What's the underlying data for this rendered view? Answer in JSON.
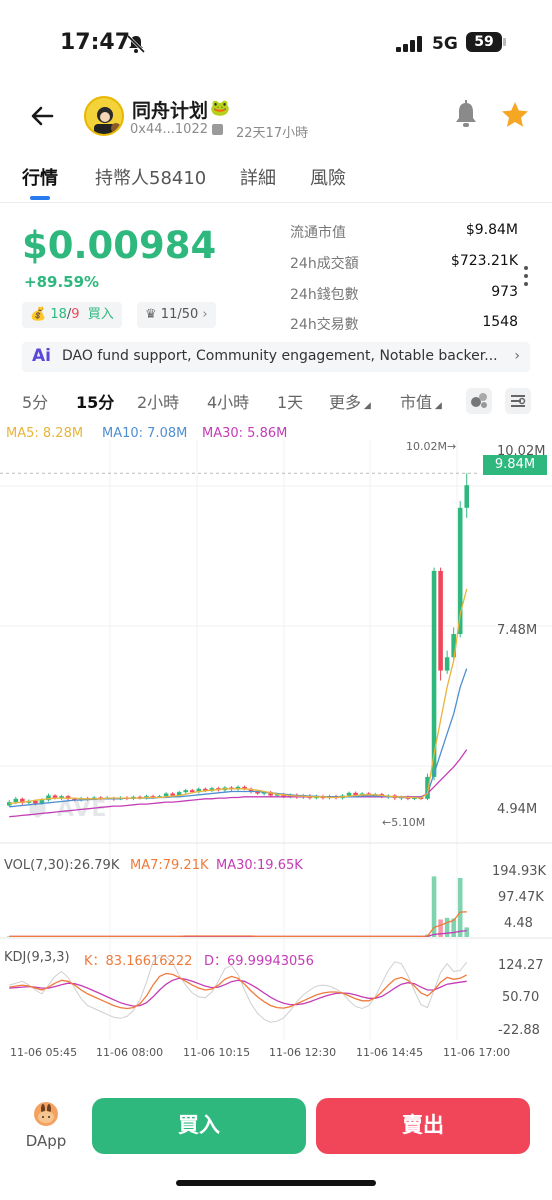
{
  "status": {
    "time": "17:47",
    "network": "5G",
    "battery": "59"
  },
  "header": {
    "token_name": "同舟计划",
    "address": "0x44...1022",
    "age": "22天17小時"
  },
  "tabs": [
    {
      "label": "行情"
    },
    {
      "label": "持幣人58410"
    },
    {
      "label": "詳細"
    },
    {
      "label": "風險"
    }
  ],
  "price": {
    "value": "$0.00984",
    "change": "+89.59%",
    "buy_sell_green": "18",
    "buy_sell_sep": "/",
    "buy_sell_red": "9",
    "buy_sell_label": "買入",
    "holders_rank": "11/50"
  },
  "stats": [
    {
      "label": "流通市值",
      "value": "$9.84M"
    },
    {
      "label": "24h成交額",
      "value": "$723.21K"
    },
    {
      "label": "24h錢包數",
      "value": "973"
    },
    {
      "label": "24h交易數",
      "value": "1548"
    }
  ],
  "ai_summary": {
    "logo": "Ai",
    "text": "DAO fund support, Community engagement, Notable backer..."
  },
  "intervals": [
    {
      "label": "5分"
    },
    {
      "label": "15分"
    },
    {
      "label": "2小時"
    },
    {
      "label": "4小時"
    },
    {
      "label": "1天"
    },
    {
      "label": "更多"
    },
    {
      "label": "市值"
    }
  ],
  "colors": {
    "up": "#2fb87e",
    "down": "#f1465a",
    "ma5": "#e8b43a",
    "ma10": "#4f8fd1",
    "ma30": "#c43cb6"
  },
  "chart_data": {
    "type": "candlestick",
    "ma_legend": {
      "ma5": "MA5: 8.28M",
      "ma10": "MA10: 7.08M",
      "ma30": "MA30: 5.86M"
    },
    "y_ticks": [
      "10.02M",
      "7.48M",
      "4.94M"
    ],
    "current_price_tag": "9.84M",
    "high_label": "10.02M→",
    "low_label": "←5.10M",
    "ylim": [
      4.5,
      10.4
    ],
    "candles": [
      [
        5.02,
        5.07,
        5.0,
        5.1
      ],
      [
        5.07,
        5.12,
        5.04,
        5.15
      ],
      [
        5.12,
        5.06,
        5.03,
        5.14
      ],
      [
        5.06,
        5.09,
        5.04,
        5.11
      ],
      [
        5.09,
        5.05,
        5.02,
        5.11
      ],
      [
        5.05,
        5.1,
        5.03,
        5.13
      ],
      [
        5.1,
        5.17,
        5.08,
        5.2
      ],
      [
        5.17,
        5.13,
        5.11,
        5.19
      ],
      [
        5.13,
        5.16,
        5.1,
        5.18
      ],
      [
        5.16,
        5.12,
        5.09,
        5.18
      ],
      [
        5.12,
        5.1,
        5.08,
        5.14
      ],
      [
        5.1,
        5.13,
        5.08,
        5.15
      ],
      [
        5.13,
        5.11,
        5.09,
        5.15
      ],
      [
        5.11,
        5.14,
        5.1,
        5.16
      ],
      [
        5.14,
        5.12,
        5.1,
        5.16
      ],
      [
        5.12,
        5.14,
        5.11,
        5.16
      ],
      [
        5.14,
        5.11,
        5.09,
        5.15
      ],
      [
        5.11,
        5.14,
        5.1,
        5.16
      ],
      [
        5.14,
        5.12,
        5.1,
        5.16
      ],
      [
        5.12,
        5.15,
        5.1,
        5.17
      ],
      [
        5.15,
        5.13,
        5.11,
        5.17
      ],
      [
        5.13,
        5.16,
        5.11,
        5.18
      ],
      [
        5.16,
        5.14,
        5.12,
        5.18
      ],
      [
        5.14,
        5.16,
        5.13,
        5.18
      ],
      [
        5.16,
        5.2,
        5.14,
        5.22
      ],
      [
        5.2,
        5.17,
        5.15,
        5.22
      ],
      [
        5.17,
        5.22,
        5.15,
        5.24
      ],
      [
        5.22,
        5.25,
        5.2,
        5.27
      ],
      [
        5.25,
        5.22,
        5.2,
        5.27
      ],
      [
        5.22,
        5.27,
        5.2,
        5.29
      ],
      [
        5.27,
        5.24,
        5.22,
        5.29
      ],
      [
        5.24,
        5.28,
        5.22,
        5.3
      ],
      [
        5.28,
        5.25,
        5.23,
        5.3
      ],
      [
        5.25,
        5.29,
        5.23,
        5.31
      ],
      [
        5.29,
        5.26,
        5.24,
        5.31
      ],
      [
        5.26,
        5.3,
        5.24,
        5.32
      ],
      [
        5.3,
        5.27,
        5.25,
        5.32
      ],
      [
        5.27,
        5.23,
        5.2,
        5.29
      ],
      [
        5.23,
        5.2,
        5.18,
        5.25
      ],
      [
        5.2,
        5.22,
        5.17,
        5.24
      ],
      [
        5.22,
        5.17,
        5.15,
        5.24
      ],
      [
        5.17,
        5.19,
        5.15,
        5.21
      ],
      [
        5.19,
        5.15,
        5.13,
        5.21
      ],
      [
        5.15,
        5.18,
        5.13,
        5.2
      ],
      [
        5.18,
        5.14,
        5.12,
        5.2
      ],
      [
        5.14,
        5.17,
        5.12,
        5.19
      ],
      [
        5.17,
        5.13,
        5.11,
        5.19
      ],
      [
        5.13,
        5.16,
        5.11,
        5.18
      ],
      [
        5.16,
        5.13,
        5.11,
        5.18
      ],
      [
        5.13,
        5.16,
        5.11,
        5.18
      ],
      [
        5.16,
        5.13,
        5.11,
        5.18
      ],
      [
        5.13,
        5.17,
        5.11,
        5.19
      ],
      [
        5.17,
        5.21,
        5.15,
        5.23
      ],
      [
        5.21,
        5.17,
        5.15,
        5.23
      ],
      [
        5.17,
        5.2,
        5.15,
        5.22
      ],
      [
        5.2,
        5.16,
        5.14,
        5.22
      ],
      [
        5.16,
        5.19,
        5.14,
        5.21
      ],
      [
        5.19,
        5.15,
        5.13,
        5.21
      ],
      [
        5.15,
        5.17,
        5.12,
        5.19
      ],
      [
        5.17,
        5.13,
        5.1,
        5.19
      ],
      [
        5.13,
        5.15,
        5.1,
        5.17
      ],
      [
        5.15,
        5.12,
        5.1,
        5.17
      ],
      [
        5.12,
        5.14,
        5.1,
        5.16
      ],
      [
        5.14,
        5.12,
        5.1,
        5.16
      ],
      [
        5.12,
        5.45,
        5.1,
        5.5
      ],
      [
        5.45,
        8.55,
        5.4,
        8.6
      ],
      [
        8.55,
        7.05,
        6.9,
        8.6
      ],
      [
        7.05,
        7.25,
        7.0,
        7.35
      ],
      [
        7.25,
        7.6,
        7.2,
        7.7
      ],
      [
        7.6,
        9.5,
        7.55,
        9.6
      ],
      [
        9.5,
        9.84,
        9.35,
        10.02
      ]
    ],
    "ma5": [
      5.05,
      5.06,
      5.07,
      5.08,
      5.1,
      5.11,
      5.12,
      5.13,
      5.13,
      5.13,
      5.13,
      5.12,
      5.12,
      5.12,
      5.12,
      5.13,
      5.13,
      5.13,
      5.13,
      5.13,
      5.13,
      5.14,
      5.14,
      5.14,
      5.15,
      5.16,
      5.17,
      5.19,
      5.21,
      5.23,
      5.24,
      5.25,
      5.26,
      5.27,
      5.27,
      5.27,
      5.27,
      5.26,
      5.25,
      5.23,
      5.21,
      5.19,
      5.18,
      5.17,
      5.16,
      5.16,
      5.15,
      5.15,
      5.15,
      5.14,
      5.14,
      5.15,
      5.16,
      5.17,
      5.18,
      5.18,
      5.18,
      5.17,
      5.16,
      5.15,
      5.15,
      5.14,
      5.14,
      5.13,
      5.2,
      5.8,
      6.3,
      6.8,
      7.2,
      7.9,
      8.28
    ],
    "ma10": [
      5.0,
      5.01,
      5.02,
      5.03,
      5.04,
      5.05,
      5.06,
      5.07,
      5.08,
      5.09,
      5.1,
      5.1,
      5.11,
      5.11,
      5.12,
      5.12,
      5.12,
      5.12,
      5.13,
      5.13,
      5.13,
      5.13,
      5.13,
      5.14,
      5.14,
      5.15,
      5.15,
      5.16,
      5.17,
      5.18,
      5.19,
      5.2,
      5.21,
      5.22,
      5.23,
      5.23,
      5.23,
      5.23,
      5.23,
      5.22,
      5.21,
      5.2,
      5.19,
      5.18,
      5.17,
      5.17,
      5.16,
      5.16,
      5.15,
      5.15,
      5.15,
      5.15,
      5.15,
      5.15,
      5.16,
      5.16,
      5.16,
      5.16,
      5.15,
      5.15,
      5.14,
      5.14,
      5.14,
      5.14,
      5.2,
      5.5,
      5.8,
      6.1,
      6.4,
      6.8,
      7.08
    ],
    "ma30": [
      4.85,
      4.86,
      4.87,
      4.88,
      4.89,
      4.9,
      4.91,
      4.92,
      4.93,
      4.94,
      4.95,
      4.96,
      4.97,
      4.98,
      4.99,
      5.0,
      5.01,
      5.01,
      5.02,
      5.03,
      5.04,
      5.04,
      5.05,
      5.06,
      5.07,
      5.07,
      5.08,
      5.09,
      5.1,
      5.11,
      5.12,
      5.12,
      5.13,
      5.13,
      5.14,
      5.14,
      5.15,
      5.15,
      5.15,
      5.15,
      5.15,
      5.15,
      5.15,
      5.15,
      5.15,
      5.15,
      5.15,
      5.15,
      5.15,
      5.15,
      5.15,
      5.15,
      5.15,
      5.15,
      5.15,
      5.15,
      5.15,
      5.15,
      5.15,
      5.15,
      5.15,
      5.15,
      5.15,
      5.15,
      5.2,
      5.3,
      5.4,
      5.5,
      5.6,
      5.72,
      5.86
    ],
    "volume": {
      "legend": {
        "vol": "VOL(7,30):26.79K",
        "ma7": "MA7:79.21K",
        "ma30": "MA30:19.65K"
      },
      "y_ticks": [
        "194.93K",
        "97.47K",
        "4.48"
      ],
      "ylim": [
        0,
        210
      ],
      "bars": [
        2,
        2,
        1,
        2,
        2,
        2,
        3,
        2,
        2,
        2,
        1,
        2,
        2,
        2,
        2,
        2,
        2,
        2,
        2,
        2,
        2,
        2,
        2,
        2,
        3,
        2,
        3,
        3,
        2,
        3,
        2,
        3,
        2,
        3,
        2,
        3,
        2,
        2,
        2,
        2,
        2,
        2,
        2,
        2,
        2,
        2,
        2,
        2,
        2,
        2,
        2,
        2,
        3,
        2,
        2,
        2,
        2,
        2,
        2,
        2,
        2,
        2,
        2,
        2,
        8,
        190,
        55,
        60,
        58,
        185,
        30
      ],
      "ma7": [
        2,
        2,
        2,
        2,
        2,
        2,
        2,
        2,
        2,
        2,
        2,
        2,
        2,
        2,
        2,
        2,
        2,
        2,
        2,
        2,
        2,
        2,
        2,
        2,
        2,
        2,
        2,
        3,
        3,
        3,
        3,
        3,
        3,
        3,
        3,
        3,
        3,
        3,
        2,
        2,
        2,
        2,
        2,
        2,
        2,
        2,
        2,
        2,
        2,
        2,
        2,
        2,
        2,
        2,
        2,
        2,
        2,
        2,
        2,
        2,
        2,
        2,
        2,
        2,
        3,
        30,
        37,
        45,
        52,
        78,
        79
      ],
      "ma30": [
        2,
        2,
        2,
        2,
        2,
        2,
        2,
        2,
        2,
        2,
        2,
        2,
        2,
        2,
        2,
        2,
        2,
        2,
        2,
        2,
        2,
        2,
        2,
        2,
        2,
        2,
        2,
        2,
        2,
        2,
        2,
        2,
        2,
        2,
        2,
        2,
        2,
        2,
        2,
        2,
        2,
        2,
        2,
        2,
        2,
        2,
        2,
        2,
        2,
        2,
        2,
        2,
        2,
        2,
        2,
        2,
        2,
        2,
        2,
        2,
        2,
        2,
        2,
        2,
        2,
        8,
        10,
        12,
        14,
        18,
        20
      ]
    },
    "kdj": {
      "legend": {
        "name": "KDJ(9,3,3)",
        "k": "K：83.16616222",
        "d": "D：69.99943056"
      },
      "y_ticks": [
        "124.27",
        "50.70",
        "-22.88"
      ],
      "ylim": [
        -30,
        130
      ],
      "k": [
        58,
        60,
        62,
        60,
        56,
        52,
        58,
        66,
        72,
        70,
        62,
        52,
        44,
        38,
        32,
        26,
        20,
        16,
        14,
        16,
        24,
        40,
        62,
        80,
        86,
        84,
        78,
        70,
        62,
        56,
        52,
        54,
        62,
        74,
        80,
        76,
        64,
        50,
        38,
        28,
        20,
        16,
        15,
        18,
        24,
        30,
        36,
        42,
        46,
        48,
        48,
        46,
        40,
        34,
        30,
        30,
        36,
        48,
        62,
        74,
        78,
        72,
        60,
        46,
        40,
        52,
        68,
        78,
        74,
        76,
        83
      ],
      "d": [
        56,
        57,
        58,
        59,
        58,
        56,
        56,
        59,
        63,
        66,
        65,
        61,
        56,
        50,
        44,
        38,
        32,
        26,
        22,
        19,
        20,
        26,
        38,
        52,
        64,
        72,
        76,
        74,
        70,
        65,
        60,
        57,
        58,
        63,
        69,
        72,
        70,
        63,
        55,
        46,
        37,
        30,
        25,
        22,
        22,
        24,
        28,
        33,
        38,
        42,
        45,
        46,
        45,
        42,
        38,
        35,
        35,
        39,
        47,
        56,
        64,
        67,
        65,
        58,
        52,
        52,
        58,
        64,
        66,
        68,
        70
      ],
      "j": [
        62,
        66,
        70,
        62,
        52,
        44,
        62,
        80,
        90,
        78,
        56,
        34,
        20,
        14,
        8,
        2,
        -4,
        -6,
        -2,
        10,
        32,
        68,
        110,
        124,
        120,
        108,
        82,
        62,
        46,
        38,
        36,
        48,
        70,
        96,
        102,
        84,
        52,
        24,
        4,
        -8,
        -14,
        -12,
        -5,
        10,
        28,
        42,
        52,
        60,
        62,
        60,
        54,
        46,
        30,
        18,
        14,
        20,
        38,
        66,
        92,
        110,
        106,
        82,
        50,
        22,
        16,
        52,
        88,
        106,
        90,
        92,
        109
      ]
    },
    "x_labels": [
      "11-06 05:45",
      "11-06 08:00",
      "11-06 10:15",
      "11-06 12:30",
      "11-06 14:45",
      "11-06 17:00"
    ]
  },
  "actions": {
    "dapp": "DApp",
    "buy": "買入",
    "sell": "賣出"
  }
}
